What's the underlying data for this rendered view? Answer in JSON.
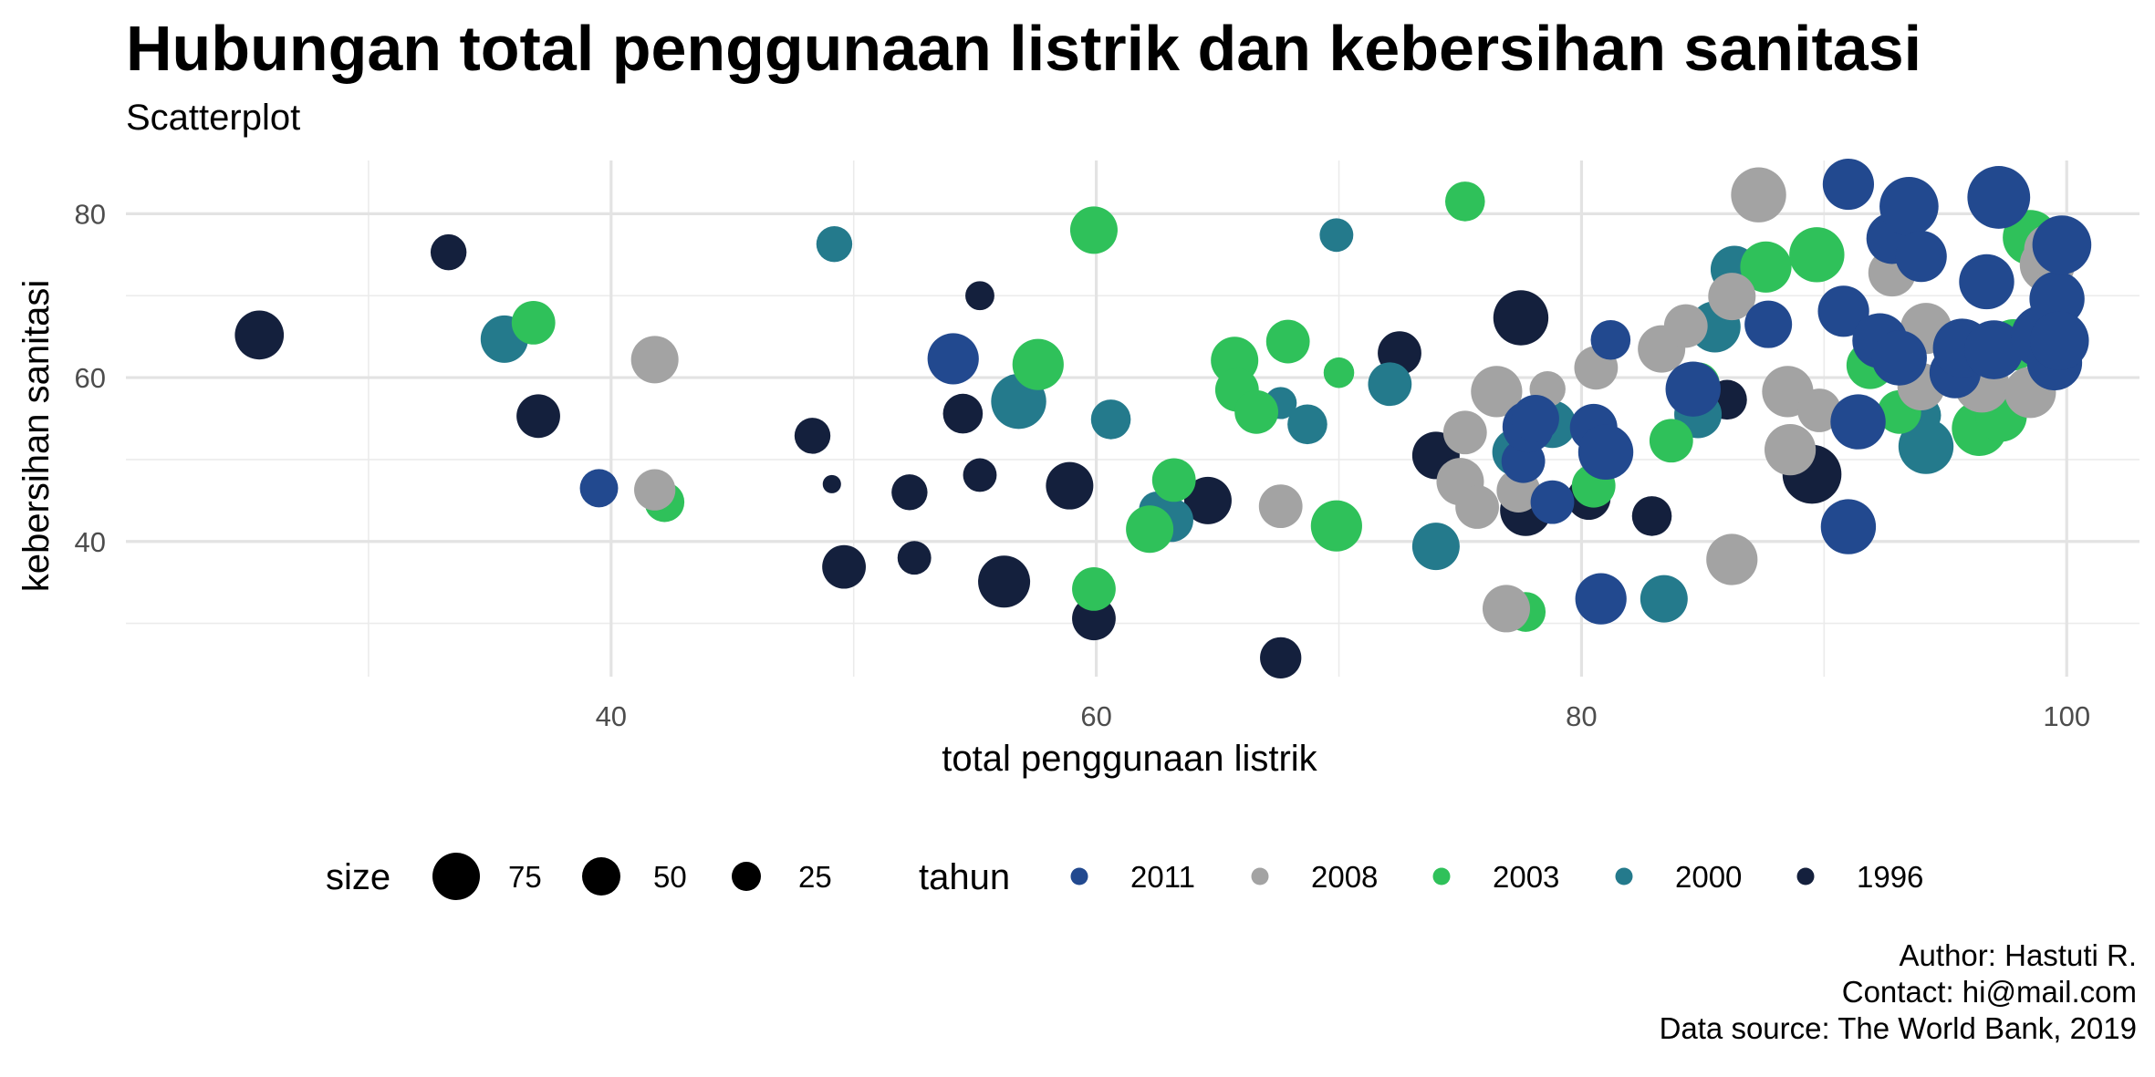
{
  "title": "Hubungan total penggunaan listrik dan kebersihan sanitasi",
  "subtitle": "Scatterplot",
  "caption": [
    "Author: Hastuti R.",
    "Contact: hi@mail.com",
    "Data source: The World Bank, 2019"
  ],
  "chart_data": {
    "type": "scatter",
    "xlabel": "total penggunaan listrik",
    "ylabel": "kebersihan sanitasi",
    "xlim": [
      20,
      103
    ],
    "ylim": [
      23.5,
      86.5
    ],
    "xticks": [
      40,
      60,
      80,
      100
    ],
    "yticks": [
      40,
      60,
      80
    ],
    "grid": true,
    "legend_position": "bottom",
    "size_legend": {
      "title": "size",
      "values": [
        75,
        50,
        25
      ]
    },
    "color_legend": {
      "title": "tahun",
      "entries": [
        {
          "name": "2011",
          "color": "#22498f"
        },
        {
          "name": "2008",
          "color": "#a3a3a3"
        },
        {
          "name": "2003",
          "color": "#2fc15a"
        },
        {
          "name": "2000",
          "color": "#247a8c"
        },
        {
          "name": "1996",
          "color": "#14203d"
        }
      ]
    },
    "series": [
      {
        "name": "1996",
        "color": "#14203d",
        "points": [
          {
            "x": 25.5,
            "y": 65.2,
            "size": 52
          },
          {
            "x": 33.3,
            "y": 75.3,
            "size": 35
          },
          {
            "x": 37.0,
            "y": 55.3,
            "size": 45
          },
          {
            "x": 48.3,
            "y": 52.9,
            "size": 35
          },
          {
            "x": 49.1,
            "y": 47.0,
            "size": 12
          },
          {
            "x": 49.6,
            "y": 36.9,
            "size": 45
          },
          {
            "x": 52.3,
            "y": 46.0,
            "size": 35
          },
          {
            "x": 52.5,
            "y": 38.0,
            "size": 32
          },
          {
            "x": 54.5,
            "y": 55.6,
            "size": 40
          },
          {
            "x": 55.2,
            "y": 48.1,
            "size": 32
          },
          {
            "x": 55.2,
            "y": 70.0,
            "size": 26
          },
          {
            "x": 56.2,
            "y": 35.1,
            "size": 56
          },
          {
            "x": 58.9,
            "y": 46.8,
            "size": 50
          },
          {
            "x": 59.9,
            "y": 30.6,
            "size": 45
          },
          {
            "x": 64.6,
            "y": 45.0,
            "size": 50
          },
          {
            "x": 67.6,
            "y": 25.8,
            "size": 42
          },
          {
            "x": 72.5,
            "y": 63.0,
            "size": 45
          },
          {
            "x": 74.0,
            "y": 50.5,
            "size": 50
          },
          {
            "x": 77.5,
            "y": 67.3,
            "size": 60
          },
          {
            "x": 77.7,
            "y": 43.8,
            "size": 55
          },
          {
            "x": 80.3,
            "y": 45.3,
            "size": 45
          },
          {
            "x": 82.9,
            "y": 43.1,
            "size": 40
          },
          {
            "x": 86.0,
            "y": 57.3,
            "size": 40
          },
          {
            "x": 89.5,
            "y": 48.2,
            "size": 65
          }
        ]
      },
      {
        "name": "2000",
        "color": "#247a8c",
        "points": [
          {
            "x": 35.6,
            "y": 64.7,
            "size": 50
          },
          {
            "x": 49.2,
            "y": 76.3,
            "size": 35
          },
          {
            "x": 56.8,
            "y": 57.1,
            "size": 60
          },
          {
            "x": 60.6,
            "y": 54.9,
            "size": 40
          },
          {
            "x": 62.5,
            "y": 43.9,
            "size": 35
          },
          {
            "x": 63.1,
            "y": 42.6,
            "size": 45
          },
          {
            "x": 67.6,
            "y": 56.9,
            "size": 30
          },
          {
            "x": 68.7,
            "y": 54.3,
            "size": 40
          },
          {
            "x": 69.9,
            "y": 77.4,
            "size": 32
          },
          {
            "x": 72.1,
            "y": 59.2,
            "size": 45
          },
          {
            "x": 74.0,
            "y": 39.4,
            "size": 50
          },
          {
            "x": 77.3,
            "y": 50.9,
            "size": 50
          },
          {
            "x": 78.8,
            "y": 54.3,
            "size": 50
          },
          {
            "x": 83.4,
            "y": 33.0,
            "size": 50
          },
          {
            "x": 84.8,
            "y": 55.5,
            "size": 50
          },
          {
            "x": 85.5,
            "y": 66.2,
            "size": 55
          },
          {
            "x": 86.3,
            "y": 73.2,
            "size": 50
          },
          {
            "x": 94.0,
            "y": 55.4,
            "size": 40
          },
          {
            "x": 94.2,
            "y": 51.6,
            "size": 60
          }
        ]
      },
      {
        "name": "2003",
        "color": "#2fc15a",
        "points": [
          {
            "x": 36.8,
            "y": 66.7,
            "size": 45
          },
          {
            "x": 42.2,
            "y": 44.8,
            "size": 40
          },
          {
            "x": 57.6,
            "y": 61.6,
            "size": 55
          },
          {
            "x": 59.9,
            "y": 78.0,
            "size": 50
          },
          {
            "x": 59.9,
            "y": 34.2,
            "size": 45
          },
          {
            "x": 62.2,
            "y": 41.5,
            "size": 50
          },
          {
            "x": 63.2,
            "y": 47.5,
            "size": 45
          },
          {
            "x": 65.7,
            "y": 62.1,
            "size": 50
          },
          {
            "x": 65.8,
            "y": 58.5,
            "size": 45
          },
          {
            "x": 66.6,
            "y": 55.8,
            "size": 45
          },
          {
            "x": 67.9,
            "y": 64.4,
            "size": 45
          },
          {
            "x": 69.9,
            "y": 41.9,
            "size": 55
          },
          {
            "x": 70.0,
            "y": 60.6,
            "size": 28
          },
          {
            "x": 75.2,
            "y": 81.5,
            "size": 40
          },
          {
            "x": 77.7,
            "y": 31.4,
            "size": 40
          },
          {
            "x": 80.5,
            "y": 46.8,
            "size": 45
          },
          {
            "x": 83.7,
            "y": 52.3,
            "size": 45
          },
          {
            "x": 84.8,
            "y": 59.2,
            "size": 45
          },
          {
            "x": 87.6,
            "y": 73.5,
            "size": 55
          },
          {
            "x": 89.7,
            "y": 75.0,
            "size": 60
          },
          {
            "x": 91.9,
            "y": 61.5,
            "size": 50
          },
          {
            "x": 93.1,
            "y": 55.8,
            "size": 45
          },
          {
            "x": 96.4,
            "y": 53.8,
            "size": 60
          },
          {
            "x": 97.3,
            "y": 55.3,
            "size": 55
          },
          {
            "x": 97.8,
            "y": 64.0,
            "size": 55
          },
          {
            "x": 98.5,
            "y": 77.1,
            "size": 60
          }
        ]
      },
      {
        "name": "2008",
        "color": "#a3a3a3",
        "points": [
          {
            "x": 41.8,
            "y": 62.2,
            "size": 50
          },
          {
            "x": 41.8,
            "y": 46.3,
            "size": 42
          },
          {
            "x": 67.6,
            "y": 44.3,
            "size": 45
          },
          {
            "x": 75.0,
            "y": 47.3,
            "size": 50
          },
          {
            "x": 75.2,
            "y": 53.3,
            "size": 45
          },
          {
            "x": 75.7,
            "y": 44.2,
            "size": 45
          },
          {
            "x": 76.5,
            "y": 58.3,
            "size": 55
          },
          {
            "x": 76.9,
            "y": 31.8,
            "size": 50
          },
          {
            "x": 77.4,
            "y": 46.2,
            "size": 45
          },
          {
            "x": 78.6,
            "y": 58.6,
            "size": 35
          },
          {
            "x": 80.6,
            "y": 61.2,
            "size": 45
          },
          {
            "x": 83.3,
            "y": 63.5,
            "size": 50
          },
          {
            "x": 84.3,
            "y": 66.3,
            "size": 45
          },
          {
            "x": 86.2,
            "y": 69.9,
            "size": 50
          },
          {
            "x": 86.2,
            "y": 37.8,
            "size": 55
          },
          {
            "x": 87.3,
            "y": 82.3,
            "size": 60
          },
          {
            "x": 88.5,
            "y": 58.3,
            "size": 55
          },
          {
            "x": 88.6,
            "y": 51.2,
            "size": 55
          },
          {
            "x": 89.8,
            "y": 56.0,
            "size": 45
          },
          {
            "x": 92.8,
            "y": 72.8,
            "size": 50
          },
          {
            "x": 93.1,
            "y": 76.2,
            "size": 55
          },
          {
            "x": 94.0,
            "y": 58.9,
            "size": 50
          },
          {
            "x": 94.2,
            "y": 66.0,
            "size": 55
          },
          {
            "x": 96.5,
            "y": 59.1,
            "size": 60
          },
          {
            "x": 98.5,
            "y": 58.2,
            "size": 55
          },
          {
            "x": 99.2,
            "y": 73.8,
            "size": 60
          },
          {
            "x": 99.3,
            "y": 75.6,
            "size": 55
          }
        ]
      },
      {
        "name": "2011",
        "color": "#22498f",
        "points": [
          {
            "x": 39.5,
            "y": 46.5,
            "size": 38
          },
          {
            "x": 54.1,
            "y": 62.3,
            "size": 55
          },
          {
            "x": 77.6,
            "y": 49.8,
            "size": 45
          },
          {
            "x": 77.8,
            "y": 54.0,
            "size": 55
          },
          {
            "x": 78.1,
            "y": 55.0,
            "size": 50
          },
          {
            "x": 78.8,
            "y": 44.8,
            "size": 45
          },
          {
            "x": 80.5,
            "y": 53.9,
            "size": 50
          },
          {
            "x": 80.8,
            "y": 33.0,
            "size": 55
          },
          {
            "x": 81.0,
            "y": 50.9,
            "size": 60
          },
          {
            "x": 81.2,
            "y": 64.6,
            "size": 40
          },
          {
            "x": 84.6,
            "y": 58.6,
            "size": 60
          },
          {
            "x": 87.7,
            "y": 66.5,
            "size": 50
          },
          {
            "x": 90.8,
            "y": 68.1,
            "size": 55
          },
          {
            "x": 91.0,
            "y": 83.6,
            "size": 55
          },
          {
            "x": 91.0,
            "y": 41.8,
            "size": 60
          },
          {
            "x": 91.4,
            "y": 54.6,
            "size": 60
          },
          {
            "x": 92.3,
            "y": 64.5,
            "size": 60
          },
          {
            "x": 92.8,
            "y": 77.0,
            "size": 55
          },
          {
            "x": 93.1,
            "y": 62.4,
            "size": 60
          },
          {
            "x": 93.5,
            "y": 80.9,
            "size": 65
          },
          {
            "x": 94.0,
            "y": 74.8,
            "size": 55
          },
          {
            "x": 95.4,
            "y": 60.6,
            "size": 55
          },
          {
            "x": 95.7,
            "y": 63.6,
            "size": 65
          },
          {
            "x": 96.7,
            "y": 71.7,
            "size": 60
          },
          {
            "x": 97.0,
            "y": 63.4,
            "size": 65
          },
          {
            "x": 97.2,
            "y": 82.0,
            "size": 70
          },
          {
            "x": 99.0,
            "y": 65.0,
            "size": 70
          },
          {
            "x": 99.5,
            "y": 61.8,
            "size": 60
          },
          {
            "x": 99.6,
            "y": 69.6,
            "size": 60
          },
          {
            "x": 99.7,
            "y": 64.5,
            "size": 65
          },
          {
            "x": 99.8,
            "y": 76.2,
            "size": 65
          }
        ]
      }
    ]
  }
}
